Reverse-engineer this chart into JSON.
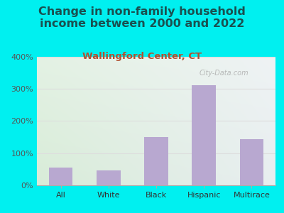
{
  "title": "Change in non-family household\nincome between 2000 and 2022",
  "subtitle": "Wallingford Center, CT",
  "categories": [
    "All",
    "White",
    "Black",
    "Hispanic",
    "Multirace"
  ],
  "values": [
    55,
    47,
    150,
    310,
    143
  ],
  "bar_color": "#b8a8d0",
  "title_fontsize": 11.5,
  "subtitle_fontsize": 9.5,
  "subtitle_color": "#b05030",
  "title_color": "#1a5050",
  "background_outer": "#00f0f0",
  "background_inner_top_left": "#d8ecd8",
  "background_inner_bottom_right": "#f0f5e8",
  "background_right": "#e8eef0",
  "ylim": [
    0,
    400
  ],
  "yticks": [
    0,
    100,
    200,
    300,
    400
  ],
  "watermark": "City-Data.com",
  "tick_label_color": "#555555",
  "grid_color": "#dddddd"
}
